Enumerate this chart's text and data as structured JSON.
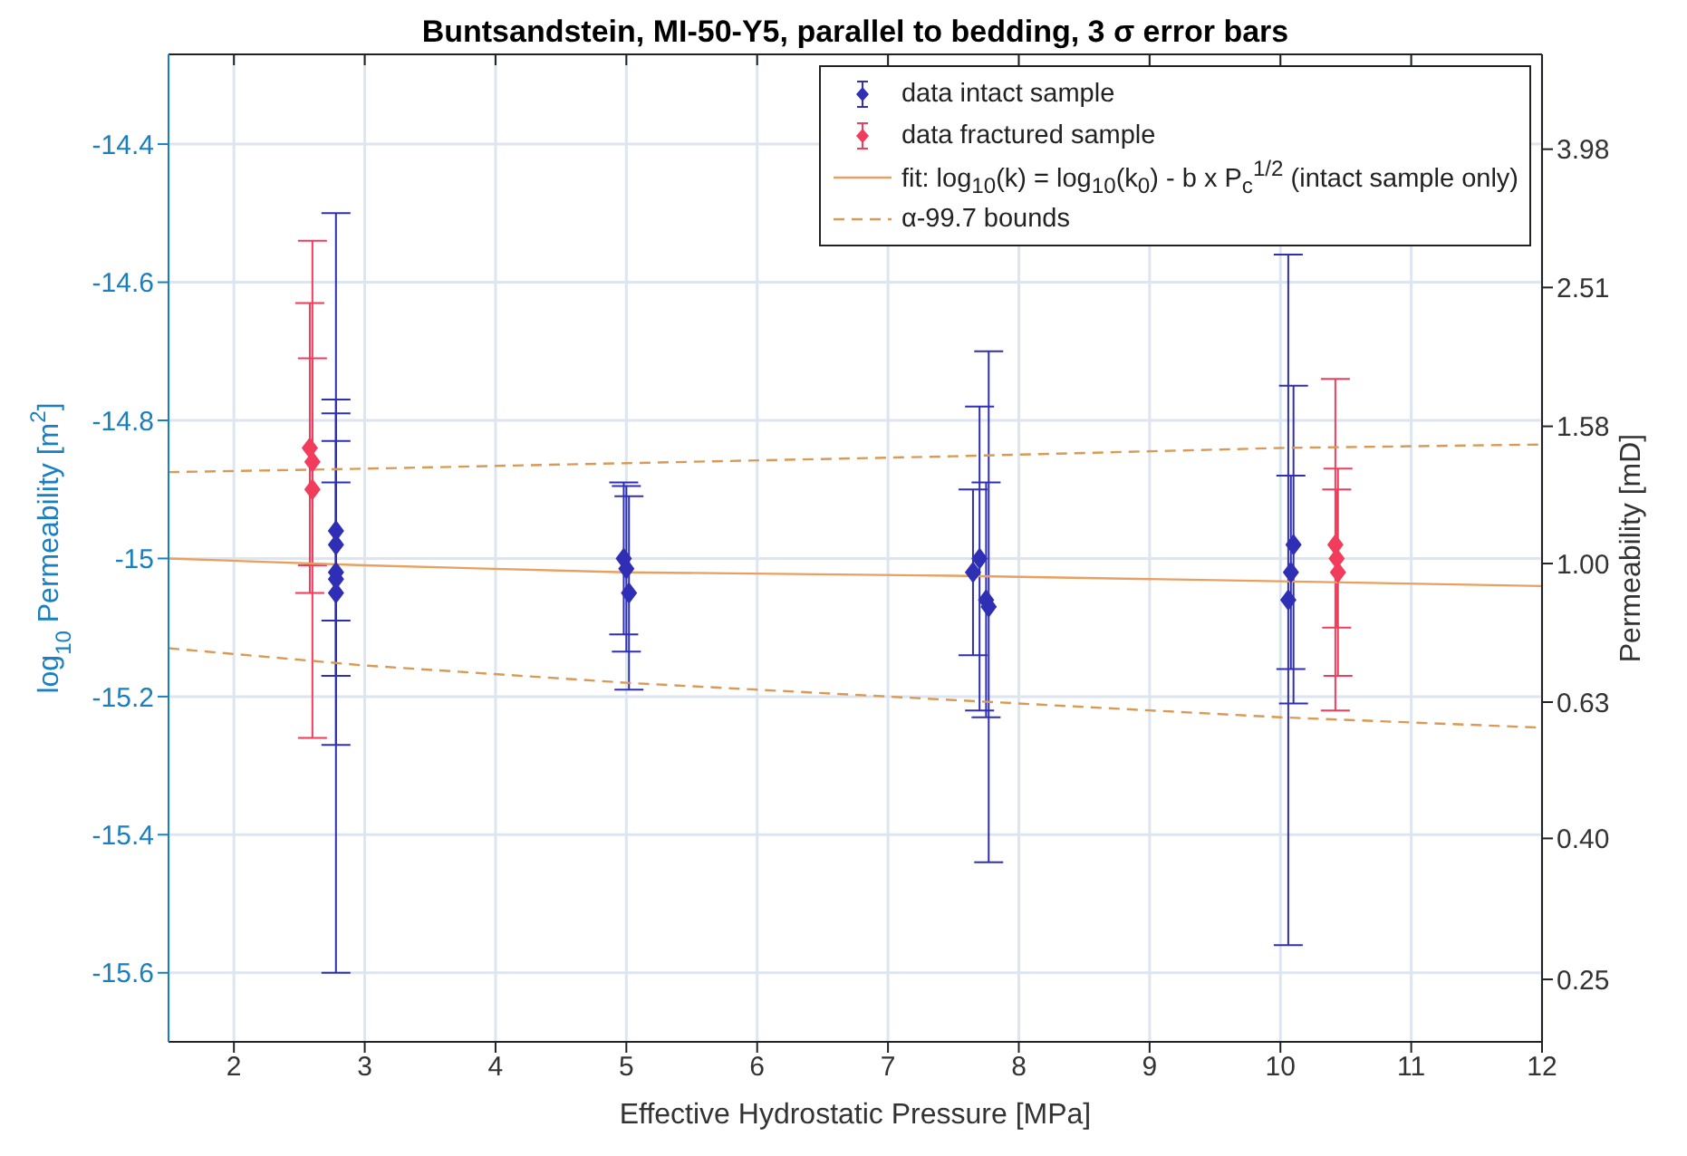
{
  "chart_data": {
    "type": "scatter",
    "title": "Buntsandstein, MI-50-Y5, parallel to bedding, 3 σ error bars",
    "xlabel": "Effective Hydrostatic Pressure [MPa]",
    "ylabel": "log$_{10}$ Permeability [m$^{2}$]",
    "y2label": "Permeability [mD]",
    "xlim": [
      1.5,
      12
    ],
    "xticks": [
      2,
      3,
      4,
      5,
      6,
      7,
      8,
      9,
      10,
      11,
      12
    ],
    "ylim": [
      -15.7,
      -14.27
    ],
    "yticks": [
      -15.6,
      -15.4,
      -15.2,
      -15,
      -14.8,
      -14.6,
      -14.4
    ],
    "y2lim": [
      0.203,
      5.46
    ],
    "y2ticks": [
      0.25,
      {
        "value": 0.4,
        "label": "0.40"
      },
      0.63,
      {
        "value": 1,
        "label": "1.00"
      },
      1.58,
      2.51,
      3.98
    ],
    "log": "y2",
    "grid": true,
    "legend": "top right",
    "series": [
      {
        "name": "data intact sample",
        "marker": "diamond",
        "color": "#2f2fb5",
        "x": [
          2.78,
          2.78,
          2.78,
          2.78,
          2.78,
          4.98,
          5.0,
          5.02,
          7.65,
          7.7,
          7.75,
          7.77,
          10.06,
          10.08,
          10.1
        ],
        "values": [
          -14.96,
          -14.98,
          -15.02,
          -15.03,
          -15.05,
          -15.0,
          -15.015,
          -15.05,
          -15.02,
          -15.0,
          -15.06,
          -15.07,
          -15.06,
          -15.02,
          -14.98
        ],
        "errors": [
          0.13,
          0.19,
          0.25,
          0.14,
          0.55,
          0.11,
          0.12,
          0.14,
          0.12,
          0.22,
          0.17,
          0.37,
          0.5,
          0.14,
          0.23
        ]
      },
      {
        "name": "data fractured sample",
        "marker": "diamond",
        "color": "#f23c5c",
        "x": [
          2.58,
          2.6,
          2.6,
          10.42,
          10.43,
          10.44
        ],
        "values": [
          -14.84,
          -14.86,
          -14.9,
          -14.98,
          -15.0,
          -15.02
        ],
        "errors": [
          0.21,
          0.15,
          0.36,
          0.24,
          0.1,
          0.15
        ]
      },
      {
        "name": "fit: log$_{10}$(k) = log$_{10}$(k$_{0}$) - b x P$_{c}$$^{1/2}$ (intact sample only)",
        "type": "line",
        "marker": "none",
        "color": "#e8a060",
        "line_style": "solid",
        "x": [
          1.5,
          3,
          5,
          7.5,
          10,
          12
        ],
        "values": [
          -15.0,
          -15.01,
          -15.02,
          -15.025,
          -15.033,
          -15.04
        ]
      },
      {
        "name": "α-99.7 bounds",
        "type": "line",
        "marker": "none",
        "color": "#d99a55",
        "line_style": "dashed",
        "x": [
          1.5,
          3,
          5,
          7.5,
          10,
          12
        ],
        "values": [
          -14.875,
          -14.87,
          -14.862,
          -14.852,
          -14.84,
          -14.835
        ]
      },
      {
        "type": "line",
        "marker": "none",
        "color": "#d99a55",
        "line_style": "dashed",
        "x": [
          1.5,
          3,
          5,
          7.5,
          10,
          12
        ],
        "values": [
          -15.13,
          -15.155,
          -15.18,
          -15.205,
          -15.23,
          -15.245
        ]
      }
    ]
  }
}
